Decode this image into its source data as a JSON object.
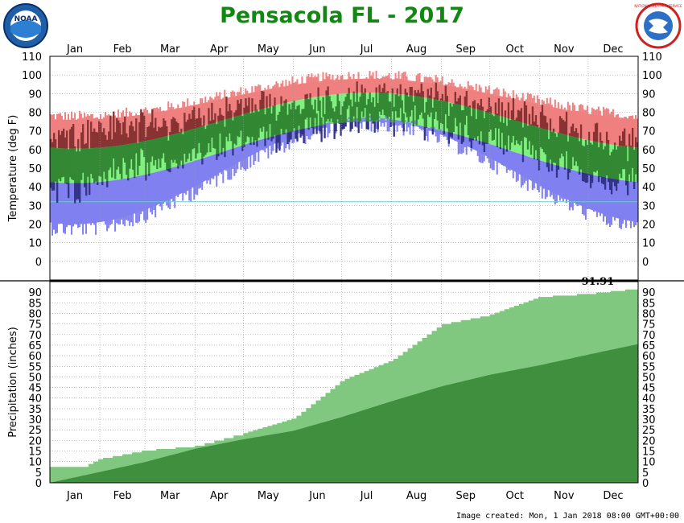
{
  "title": "Pensacola FL - 2017",
  "footer": "Image created: Mon, 1 Jan 2018 08:00 GMT+00:00",
  "logos": {
    "left": "NOAA",
    "right": "NATIONAL WEATHER SERVICE"
  },
  "colors": {
    "record_high": "#f08080",
    "normal_band": "#80f080",
    "record_low": "#8080f0",
    "observed_warm": "#883333",
    "observed_normal": "#338833",
    "observed_cold": "#333388",
    "precip_observed": "#80c880",
    "precip_normal": "#3f8f3f",
    "freezing_line": "#66cccc"
  },
  "chart_data": [
    {
      "type": "area",
      "name": "temperature",
      "ylabel": "Temperature (deg F)",
      "xlabel": "",
      "months": [
        "Jan",
        "Feb",
        "Mar",
        "Apr",
        "May",
        "Jun",
        "Jul",
        "Aug",
        "Sep",
        "Oct",
        "Nov",
        "Dec"
      ],
      "ylim": [
        -10,
        110
      ],
      "yticks": [
        0,
        10,
        20,
        30,
        40,
        50,
        60,
        70,
        80,
        90,
        100,
        110
      ],
      "freezing_line": 32,
      "grid": true,
      "monthly_observed_range": [
        {
          "month": "Jan",
          "low_avg": 40,
          "high_avg": 68
        },
        {
          "month": "Feb",
          "low_avg": 50,
          "high_avg": 73
        },
        {
          "month": "Mar",
          "low_avg": 52,
          "high_avg": 73
        },
        {
          "month": "Apr",
          "low_avg": 61,
          "high_avg": 80
        },
        {
          "month": "May",
          "low_avg": 66,
          "high_avg": 84
        },
        {
          "month": "Jun",
          "low_avg": 73,
          "high_avg": 86
        },
        {
          "month": "Jul",
          "low_avg": 76,
          "high_avg": 89
        },
        {
          "month": "Aug",
          "low_avg": 75,
          "high_avg": 88
        },
        {
          "month": "Sep",
          "low_avg": 69,
          "high_avg": 86
        },
        {
          "month": "Oct",
          "low_avg": 63,
          "high_avg": 80
        },
        {
          "month": "Nov",
          "low_avg": 50,
          "high_avg": 72
        },
        {
          "month": "Dec",
          "low_avg": 42,
          "high_avg": 63
        }
      ]
    },
    {
      "type": "area",
      "name": "precipitation",
      "ylabel": "Precipitation (inches)",
      "xlabel": "",
      "months": [
        "Jan",
        "Feb",
        "Mar",
        "Apr",
        "May",
        "Jun",
        "Jul",
        "Aug",
        "Sep",
        "Oct",
        "Nov",
        "Dec"
      ],
      "ylim": [
        0,
        95
      ],
      "yticks": [
        0,
        5,
        10,
        15,
        20,
        25,
        30,
        35,
        40,
        45,
        50,
        55,
        60,
        65,
        70,
        75,
        80,
        85,
        90
      ],
      "grid": true,
      "annotation": "91.91",
      "observed_cumulative_end_of_month": [
        {
          "month": "Jan",
          "value": 11.5
        },
        {
          "month": "Feb",
          "value": 15.5
        },
        {
          "month": "Mar",
          "value": 17.5
        },
        {
          "month": "Apr",
          "value": 23.5
        },
        {
          "month": "May",
          "value": 30.5
        },
        {
          "month": "Jun",
          "value": 48.5
        },
        {
          "month": "Jul",
          "value": 58.0
        },
        {
          "month": "Aug",
          "value": 75.0
        },
        {
          "month": "Sep",
          "value": 79.5
        },
        {
          "month": "Oct",
          "value": 88.0
        },
        {
          "month": "Nov",
          "value": 89.5
        },
        {
          "month": "Dec",
          "value": 91.91
        }
      ],
      "normal_cumulative_end_of_month": [
        {
          "month": "Jan",
          "value": 5.1
        },
        {
          "month": "Feb",
          "value": 9.8
        },
        {
          "month": "Mar",
          "value": 16.0
        },
        {
          "month": "Apr",
          "value": 20.5
        },
        {
          "month": "May",
          "value": 24.5
        },
        {
          "month": "Jun",
          "value": 31.0
        },
        {
          "month": "Jul",
          "value": 38.5
        },
        {
          "month": "Aug",
          "value": 45.5
        },
        {
          "month": "Sep",
          "value": 51.0
        },
        {
          "month": "Oct",
          "value": 55.5
        },
        {
          "month": "Nov",
          "value": 60.5
        },
        {
          "month": "Dec",
          "value": 65.5
        }
      ]
    }
  ]
}
